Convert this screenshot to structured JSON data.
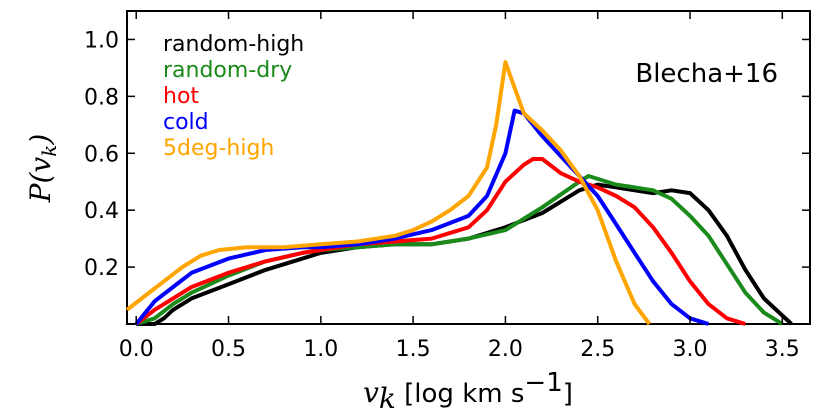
{
  "chart_data": {
    "type": "line",
    "xlabel": "v_k [log km s^-1]",
    "ylabel": "P(v_k)",
    "xlim": [
      -0.05,
      3.65
    ],
    "ylim": [
      0,
      1.1
    ],
    "grid": false,
    "legend_placement": "top-left",
    "annotation": "Blecha+16",
    "x_ticks": [
      "0.0",
      "0.5",
      "1.0",
      "1.5",
      "2.0",
      "2.5",
      "3.0",
      "3.5"
    ],
    "y_ticks": [
      "0.2",
      "0.4",
      "0.6",
      "0.8",
      "1.0"
    ],
    "series": [
      {
        "name": "random-high",
        "color": "#000000",
        "x": [
          0.0,
          0.1,
          0.15,
          0.2,
          0.3,
          0.5,
          0.7,
          0.9,
          1.0,
          1.2,
          1.4,
          1.6,
          1.8,
          2.0,
          2.2,
          2.4,
          2.5,
          2.6,
          2.7,
          2.8,
          2.9,
          3.0,
          3.1,
          3.2,
          3.3,
          3.4,
          3.5,
          3.55
        ],
        "values": [
          0.0,
          0.0,
          0.02,
          0.05,
          0.09,
          0.14,
          0.19,
          0.23,
          0.25,
          0.27,
          0.28,
          0.28,
          0.3,
          0.34,
          0.39,
          0.47,
          0.49,
          0.48,
          0.47,
          0.46,
          0.47,
          0.46,
          0.4,
          0.31,
          0.19,
          0.09,
          0.03,
          0.0
        ]
      },
      {
        "name": "random-dry",
        "color": "#1a8a1a",
        "x": [
          0.0,
          0.1,
          0.2,
          0.3,
          0.5,
          0.7,
          0.9,
          1.0,
          1.2,
          1.4,
          1.6,
          1.8,
          2.0,
          2.2,
          2.4,
          2.45,
          2.5,
          2.6,
          2.7,
          2.8,
          2.9,
          3.0,
          3.1,
          3.2,
          3.3,
          3.4,
          3.5
        ],
        "values": [
          0.0,
          0.02,
          0.07,
          0.11,
          0.17,
          0.22,
          0.25,
          0.26,
          0.27,
          0.28,
          0.28,
          0.3,
          0.33,
          0.41,
          0.5,
          0.52,
          0.51,
          0.49,
          0.48,
          0.47,
          0.44,
          0.38,
          0.31,
          0.21,
          0.11,
          0.04,
          0.0
        ]
      },
      {
        "name": "hot",
        "color": "#ff0000",
        "x": [
          0.0,
          0.1,
          0.2,
          0.3,
          0.5,
          0.7,
          0.9,
          1.0,
          1.2,
          1.4,
          1.6,
          1.8,
          1.9,
          2.0,
          2.1,
          2.15,
          2.2,
          2.3,
          2.4,
          2.5,
          2.6,
          2.7,
          2.8,
          2.9,
          3.0,
          3.1,
          3.2,
          3.3
        ],
        "values": [
          0.0,
          0.05,
          0.09,
          0.13,
          0.18,
          0.22,
          0.25,
          0.26,
          0.28,
          0.29,
          0.3,
          0.34,
          0.4,
          0.5,
          0.56,
          0.58,
          0.58,
          0.53,
          0.5,
          0.48,
          0.45,
          0.41,
          0.34,
          0.25,
          0.15,
          0.07,
          0.02,
          0.0
        ]
      },
      {
        "name": "cold",
        "color": "#0000ff",
        "x": [
          0.0,
          0.1,
          0.2,
          0.3,
          0.5,
          0.7,
          0.9,
          1.0,
          1.2,
          1.4,
          1.6,
          1.8,
          1.9,
          2.0,
          2.05,
          2.1,
          2.2,
          2.3,
          2.4,
          2.5,
          2.6,
          2.7,
          2.8,
          2.9,
          3.0,
          3.1
        ],
        "values": [
          0.0,
          0.08,
          0.13,
          0.18,
          0.23,
          0.26,
          0.27,
          0.27,
          0.28,
          0.3,
          0.33,
          0.38,
          0.45,
          0.6,
          0.75,
          0.74,
          0.66,
          0.59,
          0.52,
          0.45,
          0.35,
          0.25,
          0.15,
          0.07,
          0.02,
          0.0
        ]
      },
      {
        "name": "5deg-high",
        "color": "#ffa500",
        "x": [
          -0.05,
          0.05,
          0.15,
          0.25,
          0.35,
          0.45,
          0.6,
          0.8,
          1.0,
          1.2,
          1.4,
          1.5,
          1.6,
          1.7,
          1.8,
          1.9,
          1.95,
          2.0,
          2.05,
          2.1,
          2.2,
          2.3,
          2.4,
          2.5,
          2.6,
          2.7,
          2.78
        ],
        "values": [
          0.05,
          0.1,
          0.15,
          0.2,
          0.24,
          0.26,
          0.27,
          0.27,
          0.28,
          0.29,
          0.31,
          0.33,
          0.36,
          0.4,
          0.45,
          0.55,
          0.7,
          0.92,
          0.83,
          0.74,
          0.68,
          0.61,
          0.52,
          0.4,
          0.22,
          0.07,
          0.0
        ]
      }
    ]
  }
}
